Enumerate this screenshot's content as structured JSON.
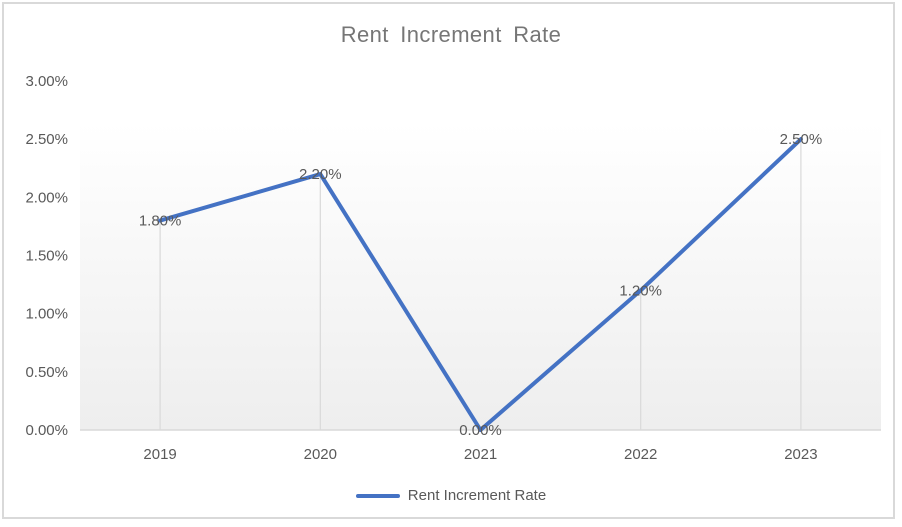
{
  "chart_data": {
    "type": "line",
    "title": "Rent Increment Rate",
    "categories": [
      "2019",
      "2020",
      "2021",
      "2022",
      "2023"
    ],
    "series": [
      {
        "name": "Rent Increment Rate",
        "values": [
          1.8,
          2.2,
          0.0,
          1.2,
          2.5
        ]
      }
    ],
    "data_labels": [
      "1.80%",
      "2.20%",
      "0.00%",
      "1.20%",
      "2.50%"
    ],
    "y_ticks": [
      "0.00%",
      "0.50%",
      "1.00%",
      "1.50%",
      "2.00%",
      "2.50%",
      "3.00%"
    ],
    "y_tick_step": 0.5,
    "ylim": [
      0,
      3
    ],
    "xlabel": "",
    "ylabel": "",
    "grid": "drop-lines-only",
    "legend": {
      "position": "bottom",
      "label": "Rent Increment Rate"
    },
    "colors": {
      "line": "#4472C4",
      "axis": "#D9D9D9",
      "tick_text": "#595959",
      "title_text": "#767676",
      "plot_fill_top": "#FFFFFF",
      "plot_fill_bottom": "#EEEEEE",
      "frame_border": "#D9D9D9"
    }
  }
}
